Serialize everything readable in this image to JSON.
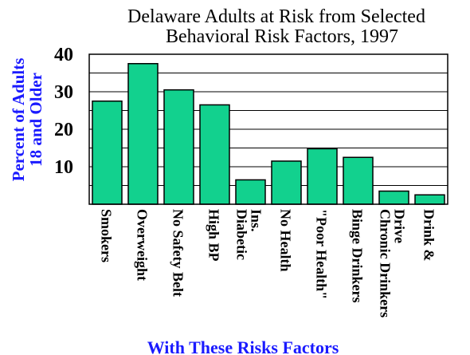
{
  "chart_data": {
    "type": "bar",
    "title_lines": [
      "Delaware Adults at Risk from Selected",
      "Behavioral Risk Factors, 1997"
    ],
    "ylabel_lines": [
      "Percent of Adults",
      "18 and Older"
    ],
    "xlabel": "With These Risks Factors",
    "ylim": [
      0,
      40
    ],
    "yticks": [
      10,
      20,
      30,
      40
    ],
    "grid": true,
    "categories": [
      [
        "Smokers"
      ],
      [
        "Overweight"
      ],
      [
        "No Safety Belt"
      ],
      [
        "High BP"
      ],
      [
        "Ins.",
        "Diabetic"
      ],
      [
        "No Health"
      ],
      [
        "\"Poor Health\""
      ],
      [
        "Binge Drinkers"
      ],
      [
        "Drive",
        "Chronic Drinkers"
      ],
      [
        "Drink &"
      ]
    ],
    "values": [
      27.5,
      37.5,
      30.5,
      26.5,
      6.5,
      11.5,
      14.8,
      12.5,
      3.5,
      2.5
    ],
    "bar_color": "#12d18e",
    "label_color": "#1a1aff"
  }
}
